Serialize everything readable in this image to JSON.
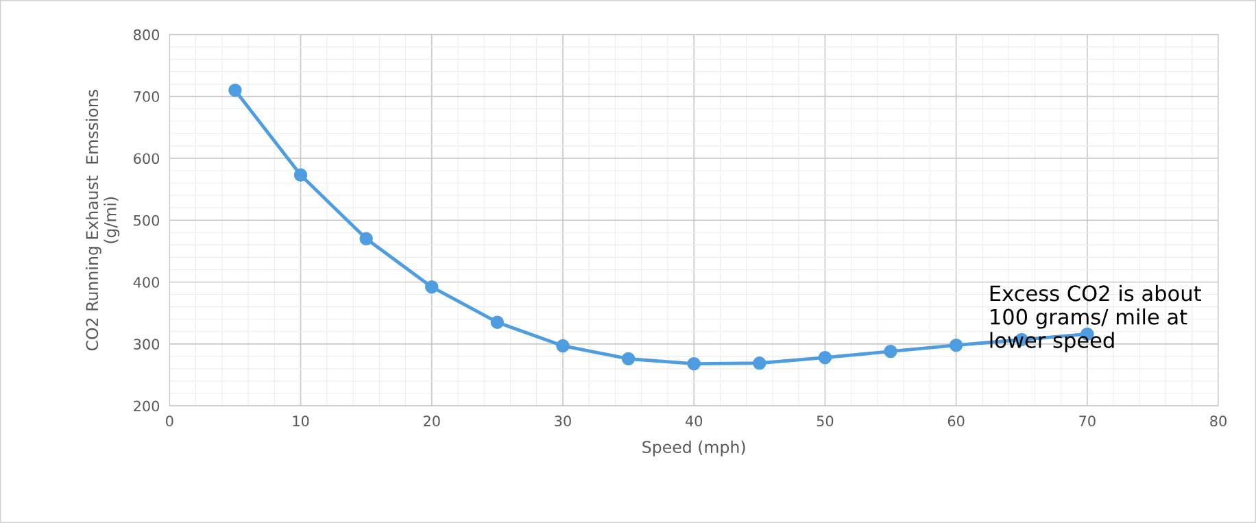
{
  "chart_data": {
    "type": "line",
    "xlabel": "Speed (mph)",
    "ylabel": "CO2 Running Exhaust  Emssions\n(g/mi)",
    "x": [
      5,
      10,
      15,
      20,
      25,
      30,
      35,
      40,
      45,
      50,
      55,
      60,
      65,
      70
    ],
    "series": [
      {
        "color": "#4e9de0",
        "values": [
          710,
          573,
          470,
          392,
          335,
          297,
          276,
          268,
          269,
          278,
          288,
          298,
          307,
          316
        ]
      }
    ],
    "xlim": [
      0,
      80
    ],
    "xticks": [
      0,
      10,
      20,
      30,
      40,
      50,
      60,
      70,
      80
    ],
    "ylim": [
      200,
      800
    ],
    "yticks": [
      200,
      300,
      400,
      500,
      600,
      700,
      800
    ],
    "grid": true,
    "marker": "circle",
    "line_style": "solid",
    "annotations": [
      "Excess CO2 is about\n100 grams/ mile at\nlower speed"
    ]
  }
}
